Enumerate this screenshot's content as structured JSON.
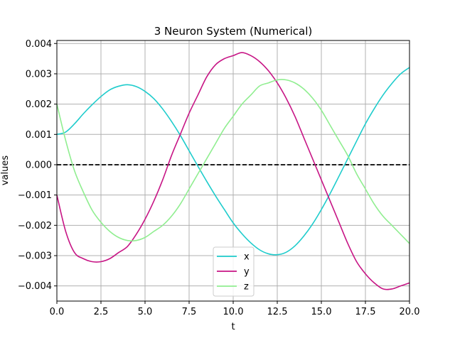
{
  "chart_data": {
    "type": "line",
    "title": "3 Neuron System (Numerical)",
    "xlabel": "t",
    "ylabel": "values",
    "xlim": [
      0,
      20
    ],
    "ylim": [
      -0.0045,
      0.0041
    ],
    "xticks": [
      0,
      2.5,
      5,
      7.5,
      10,
      12.5,
      15,
      17.5,
      20
    ],
    "xtick_labels": [
      "0.0",
      "2.5",
      "5.0",
      "7.5",
      "10.0",
      "12.5",
      "15.0",
      "17.5",
      "20.0"
    ],
    "yticks": [
      -0.004,
      -0.003,
      -0.002,
      -0.001,
      0,
      0.001,
      0.002,
      0.003,
      0.004
    ],
    "ytick_labels": [
      "−0.004",
      "−0.003",
      "−0.002",
      "−0.001",
      "0.000",
      "0.001",
      "0.002",
      "0.003",
      "0.004"
    ],
    "grid": true,
    "legend_position": "bottom-center",
    "reference_line": {
      "y": 0,
      "style": "dashed",
      "color": "#000000"
    },
    "series": [
      {
        "name": "x",
        "color": "#1ecccc",
        "x": [
          0,
          0.5,
          1,
          1.5,
          2,
          2.5,
          3,
          3.5,
          4,
          4.5,
          5,
          5.5,
          6,
          6.5,
          7,
          7.5,
          8,
          8.5,
          9,
          9.5,
          10,
          10.5,
          11,
          11.5,
          12,
          12.5,
          13,
          13.5,
          14,
          14.5,
          15,
          15.5,
          16,
          16.5,
          17,
          17.5,
          18,
          18.5,
          19,
          19.5,
          20
        ],
        "y": [
          0.001,
          0.00108,
          0.00135,
          0.00168,
          0.00198,
          0.00225,
          0.00247,
          0.00259,
          0.00264,
          0.00258,
          0.00242,
          0.00218,
          0.00184,
          0.00143,
          0.00097,
          0.00046,
          -5e-05,
          -0.00055,
          -0.00103,
          -0.00148,
          -0.00192,
          -0.00228,
          -0.00258,
          -0.00281,
          -0.00294,
          -0.00297,
          -0.00289,
          -0.00268,
          -0.00236,
          -0.00196,
          -0.00148,
          -0.00095,
          -0.00038,
          0.0002,
          0.00078,
          0.00135,
          0.00185,
          0.0023,
          0.00268,
          0.003,
          0.00321
        ]
      },
      {
        "name": "y",
        "color": "#c71585",
        "x": [
          0,
          0.5,
          1,
          1.5,
          2,
          2.5,
          3,
          3.5,
          4,
          4.5,
          5,
          5.5,
          6,
          6.5,
          7,
          7.5,
          8,
          8.5,
          9,
          9.5,
          10,
          10.5,
          11,
          11.5,
          12,
          12.5,
          13,
          13.5,
          14,
          14.5,
          15,
          15.5,
          16,
          16.5,
          17,
          17.5,
          18,
          18.5,
          19,
          19.5,
          20
        ],
        "y": [
          -0.001,
          -0.0022,
          -0.0029,
          -0.0031,
          -0.0032,
          -0.0032,
          -0.0031,
          -0.0029,
          -0.0027,
          -0.0023,
          -0.0018,
          -0.0012,
          -0.0005,
          0.0003,
          0.001,
          0.0017,
          0.0023,
          0.0029,
          0.0033,
          0.0035,
          0.0036,
          0.0037,
          0.0036,
          0.0034,
          0.0031,
          0.0027,
          0.0022,
          0.0016,
          0.0009,
          0.0002,
          -0.0005,
          -0.0012,
          -0.0019,
          -0.0026,
          -0.0032,
          -0.0036,
          -0.0039,
          -0.0041,
          -0.0041,
          -0.004,
          -0.0039
        ]
      },
      {
        "name": "z",
        "color": "#90ee90",
        "x": [
          0,
          0.5,
          1,
          1.5,
          2,
          2.5,
          3,
          3.5,
          4,
          4.5,
          5,
          5.5,
          6,
          6.5,
          7,
          7.5,
          8,
          8.5,
          9,
          9.5,
          10,
          10.5,
          11,
          11.5,
          12,
          12.5,
          13,
          13.5,
          14,
          14.5,
          15,
          15.5,
          16,
          16.5,
          17,
          17.5,
          18,
          18.5,
          19,
          19.5,
          20
        ],
        "y": [
          0.002,
          0.0008,
          -0.0002,
          -0.0009,
          -0.0015,
          -0.0019,
          -0.0022,
          -0.0024,
          -0.0025,
          -0.0025,
          -0.0024,
          -0.0022,
          -0.002,
          -0.0017,
          -0.0013,
          -0.0008,
          -0.0003,
          0.0002,
          0.0007,
          0.0012,
          0.0016,
          0.002,
          0.0023,
          0.0026,
          0.0027,
          0.0028,
          0.0028,
          0.0027,
          0.0025,
          0.0022,
          0.0018,
          0.0013,
          0.0008,
          0.0003,
          -0.0003,
          -0.0008,
          -0.0013,
          -0.0017,
          -0.002,
          -0.0023,
          -0.0026
        ]
      }
    ]
  }
}
